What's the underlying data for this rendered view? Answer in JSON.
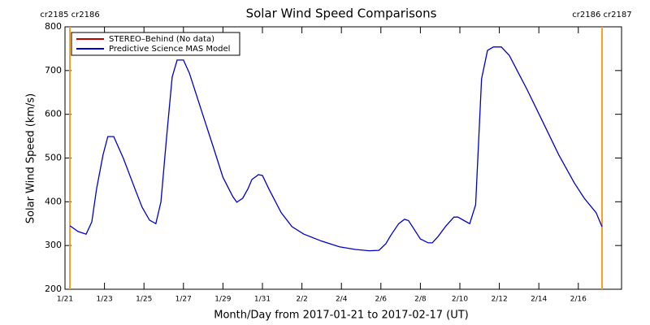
{
  "chart_data": {
    "type": "line",
    "title": "Solar Wind Speed Comparisons",
    "x_label": "Month/Day from 2017-01-21 to 2017-02-17 (UT)",
    "y_label": "Solar Wind Speed (km/s)",
    "x": [
      0.25,
      0.66,
      1.07,
      1.36,
      1.6,
      1.93,
      2.17,
      2.47,
      2.96,
      3.54,
      3.9,
      4.28,
      4.6,
      4.86,
      5.14,
      5.43,
      5.68,
      6.0,
      6.3,
      6.9,
      7.5,
      8.0,
      8.5,
      8.7,
      9.0,
      9.26,
      9.47,
      9.8,
      10.0,
      10.33,
      10.95,
      11.5,
      12.1,
      13.0,
      13.9,
      14.7,
      15.4,
      15.9,
      16.25,
      16.5,
      16.9,
      17.2,
      17.4,
      17.7,
      18.0,
      18.4,
      18.6,
      18.9,
      19.3,
      19.7,
      19.9,
      20.25,
      20.5,
      20.8,
      21.1,
      21.4,
      21.7,
      22.1,
      22.5,
      23.4,
      24.2,
      25.0,
      25.8,
      26.3,
      26.9,
      27.2
    ],
    "series": [
      {
        "name": "STEREO–Behind (No data)",
        "color": "#c00000",
        "values": [
          null,
          null,
          null,
          null,
          null,
          null,
          null,
          null,
          null,
          null,
          null,
          null,
          null,
          null,
          null,
          null,
          null,
          null,
          null,
          null,
          null,
          null,
          null,
          null,
          null,
          null,
          null,
          null,
          null,
          null,
          null,
          null,
          null,
          null,
          null,
          null,
          null,
          null,
          null,
          null,
          null,
          null,
          null,
          null,
          null,
          null,
          null,
          null,
          null,
          null,
          null,
          null,
          null,
          null,
          null,
          null,
          null,
          null,
          null,
          null,
          null,
          null,
          null,
          null,
          null,
          null
        ]
      },
      {
        "name": "Predictive Science MAS Model",
        "color": "#0000cc",
        "values": [
          345,
          332,
          326,
          354,
          430,
          508,
          549,
          549,
          499,
          430,
          388,
          358,
          350,
          400,
          545,
          685,
          724,
          724,
          694,
          610,
          527,
          456,
          412,
          399,
          408,
          429,
          451,
          462,
          460,
          429,
          375,
          343,
          326,
          310,
          297,
          291,
          288,
          289,
          304,
          323,
          350,
          360,
          357,
          336,
          315,
          306,
          306,
          321,
          345,
          365,
          365,
          356,
          350,
          393,
          681,
          746,
          754,
          754,
          735,
          657,
          583,
          508,
          443,
          408,
          375,
          343
        ]
      }
    ],
    "xlim": [
      0,
      28.19
    ],
    "xticks": [
      {
        "value": 0,
        "label": "1/21"
      },
      {
        "value": 2,
        "label": "1/23"
      },
      {
        "value": 4,
        "label": "1/25"
      },
      {
        "value": 6,
        "label": "1/27"
      },
      {
        "value": 8,
        "label": "1/29"
      },
      {
        "value": 10,
        "label": "1/31"
      },
      {
        "value": 12,
        "label": "2/2"
      },
      {
        "value": 14,
        "label": "2/4"
      },
      {
        "value": 16,
        "label": "2/6"
      },
      {
        "value": 18,
        "label": "2/8"
      },
      {
        "value": 20,
        "label": "2/10"
      },
      {
        "value": 22,
        "label": "2/12"
      },
      {
        "value": 24,
        "label": "2/14"
      },
      {
        "value": 26,
        "label": "2/16"
      }
    ],
    "ylim": [
      200,
      800
    ],
    "yticks": [
      200,
      300,
      400,
      500,
      600,
      700,
      800
    ],
    "legend": "upper left",
    "annotations": [
      {
        "x": 0.25,
        "label": "cr2185 cr2186",
        "color": "#f5a020"
      },
      {
        "x": 27.2,
        "label": "cr2186 cr2187",
        "color": "#f5a020"
      }
    ]
  }
}
